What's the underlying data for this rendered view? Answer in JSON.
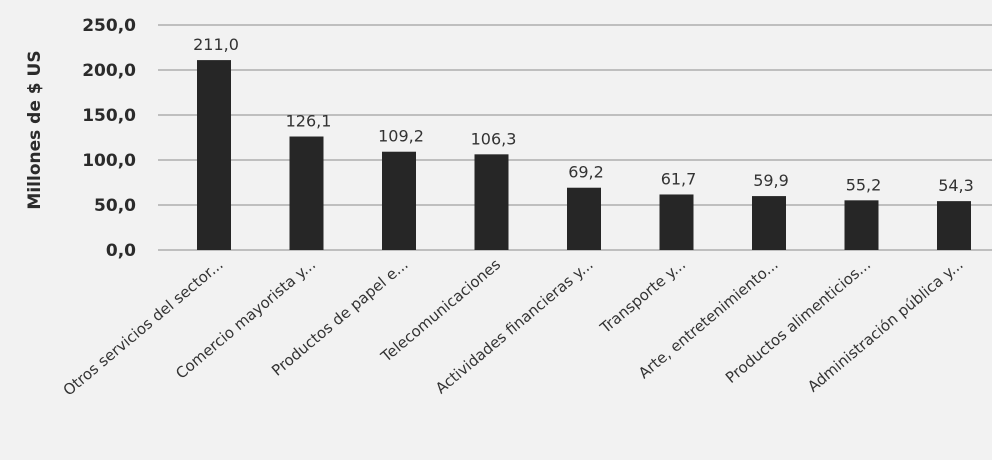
{
  "chart_data": {
    "type": "bar",
    "title": "",
    "xlabel": "",
    "ylabel": "Millones de $ US",
    "ylim": [
      0,
      250
    ],
    "yticks": [
      "0,0",
      "50,0",
      "100,0",
      "150,0",
      "200,0",
      "250,0"
    ],
    "grid": true,
    "categories": [
      "Otros servicios del sector...",
      "Comercio mayorista y...",
      "Productos de papel e...",
      "Telecomunicaciones",
      "Actividades financieras y...",
      "Transporte y...",
      "Arte, entretenimiento...",
      "Productos alimenticios...",
      "Administración pública y..."
    ],
    "values": [
      211.0,
      126.1,
      109.2,
      106.3,
      69.2,
      61.7,
      59.9,
      55.2,
      54.3
    ],
    "value_labels": [
      "211,0",
      "126,1",
      "109,2",
      "106,3",
      "69,2",
      "61,7",
      "59,9",
      "55,2",
      "54,3"
    ],
    "bar_color": "#262626"
  }
}
